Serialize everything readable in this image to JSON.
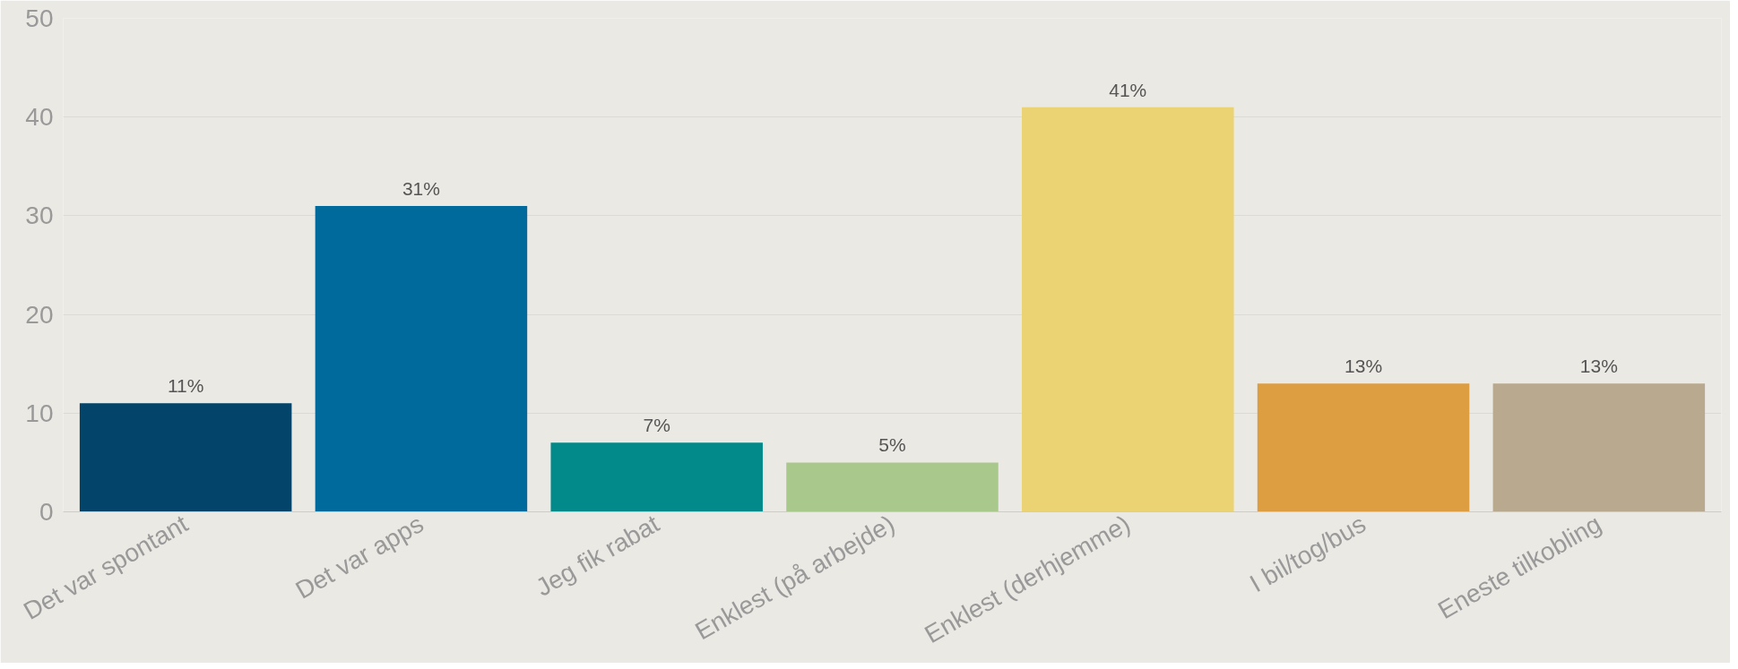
{
  "chart_data": {
    "type": "bar",
    "categories": [
      "Det var spontant",
      "Det var apps",
      "Jeg fik rabat",
      "Enklest (på arbejde)",
      "Enklest (derhjemme)",
      "I bil/tog/bus",
      "Eneste tilkobling"
    ],
    "values": [
      11,
      31,
      7,
      5,
      41,
      13,
      13
    ],
    "colors": [
      "#03446a",
      "#016a9c",
      "#028a8a",
      "#a9c98c",
      "#ebd373",
      "#dd9e42",
      "#b8a98f"
    ],
    "value_labels": [
      "11%",
      "31%",
      "7%",
      "5%",
      "41%",
      "13%",
      "13%"
    ],
    "ylim": [
      0,
      50
    ],
    "yticks": [
      0,
      10,
      20,
      30,
      40,
      50
    ],
    "grid": "y"
  }
}
